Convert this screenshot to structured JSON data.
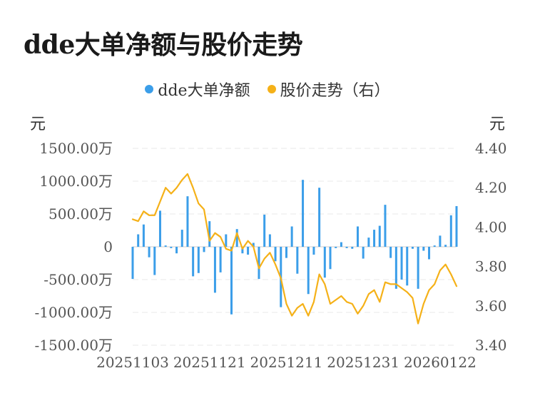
{
  "title": "dde大单净额与股价走势",
  "colors": {
    "bar": "#3b9ee9",
    "line": "#f5b118",
    "grid": "#e8e8e8",
    "axis": "#cccccc",
    "text": "#555555"
  },
  "chart_data": {
    "type": "bar",
    "title": "dde大单净额与股价走势",
    "legend_position": "top",
    "grid": true,
    "legend": [
      {
        "name": "dde大单净额",
        "color": "#3b9ee9"
      },
      {
        "name": "股价走势（右）",
        "color": "#f5b118"
      }
    ],
    "left_axis": {
      "unit": "元",
      "ylim": [
        -1500,
        1500
      ],
      "ticks": [
        1500,
        1000,
        500,
        0,
        -500,
        -1000,
        -1500
      ],
      "tick_labels": [
        "1500.00万",
        "1000.00万",
        "500.00万",
        "0",
        "-500.00万",
        "-1000.00万",
        "-1500.00万"
      ]
    },
    "right_axis": {
      "unit": "元",
      "ylim": [
        3.4,
        4.4
      ],
      "ticks": [
        4.4,
        4.2,
        4.0,
        3.8,
        3.6,
        3.4
      ],
      "tick_labels": [
        "4.40",
        "4.20",
        "4.00",
        "3.80",
        "3.60",
        "3.40"
      ]
    },
    "x_tick_labels": [
      "20251103",
      "20251121",
      "20251211",
      "20251231",
      "20260122"
    ],
    "x_tick_index": [
      0,
      14,
      28,
      42,
      56
    ],
    "series": [
      {
        "name": "dde大单净额",
        "type": "bar",
        "axis": "left",
        "values": [
          -490,
          190,
          340,
          -160,
          -430,
          550,
          20,
          -20,
          -100,
          260,
          770,
          -450,
          -400,
          -80,
          390,
          -700,
          -390,
          190,
          -1030,
          270,
          -100,
          -120,
          60,
          -490,
          490,
          190,
          -220,
          -920,
          -170,
          310,
          -410,
          1020,
          -720,
          -120,
          900,
          -470,
          -340,
          -20,
          70,
          -20,
          -30,
          310,
          -180,
          140,
          260,
          320,
          640,
          -170,
          -640,
          -500,
          -590,
          -30,
          -640,
          -60,
          -190,
          20,
          170,
          30,
          480,
          620
        ]
      },
      {
        "name": "股价走势（右）",
        "type": "line",
        "axis": "right",
        "values": [
          4.04,
          4.03,
          4.08,
          4.06,
          4.06,
          4.13,
          4.2,
          4.17,
          4.2,
          4.24,
          4.27,
          4.2,
          4.12,
          4.09,
          3.93,
          3.97,
          3.95,
          3.89,
          3.88,
          3.97,
          3.89,
          3.93,
          3.9,
          3.79,
          3.84,
          3.87,
          3.81,
          3.74,
          3.61,
          3.55,
          3.59,
          3.61,
          3.55,
          3.62,
          3.76,
          3.71,
          3.61,
          3.63,
          3.65,
          3.62,
          3.61,
          3.56,
          3.6,
          3.66,
          3.68,
          3.62,
          3.72,
          3.71,
          3.71,
          3.69,
          3.67,
          3.64,
          3.51,
          3.61,
          3.68,
          3.71,
          3.78,
          3.81,
          3.76,
          3.7
        ]
      }
    ]
  }
}
